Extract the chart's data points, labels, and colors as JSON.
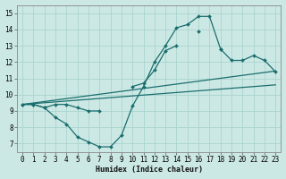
{
  "xlabel": "Humidex (Indice chaleur)",
  "bg_color": "#cce8e4",
  "grid_color": "#aad4cf",
  "line_color": "#1a6e6e",
  "xlim": [
    -0.5,
    23.5
  ],
  "ylim": [
    6.5,
    15.5
  ],
  "xticks": [
    0,
    1,
    2,
    3,
    4,
    5,
    6,
    7,
    8,
    9,
    10,
    11,
    12,
    13,
    14,
    15,
    16,
    17,
    18,
    19,
    20,
    21,
    22,
    23
  ],
  "yticks": [
    7,
    8,
    9,
    10,
    11,
    12,
    13,
    14,
    15
  ],
  "line1_y": [
    9.4,
    9.4,
    9.2,
    8.6,
    8.2,
    7.4,
    7.1,
    6.8,
    6.8,
    7.5,
    9.3,
    10.5,
    12.0,
    13.0,
    14.1,
    14.3,
    14.8,
    14.8,
    12.8,
    null,
    null,
    null,
    null,
    null
  ],
  "line2_y": [
    9.4,
    9.4,
    9.2,
    9.4,
    9.4,
    9.2,
    9.0,
    9.0,
    null,
    null,
    10.5,
    10.7,
    11.5,
    12.7,
    13.0,
    null,
    13.9,
    null,
    12.8,
    12.1,
    12.1,
    12.4,
    12.1,
    11.4
  ],
  "line3_x": [
    0,
    23
  ],
  "line3_y": [
    9.4,
    11.45
  ],
  "line4_x": [
    0,
    23
  ],
  "line4_y": [
    9.4,
    10.6
  ]
}
